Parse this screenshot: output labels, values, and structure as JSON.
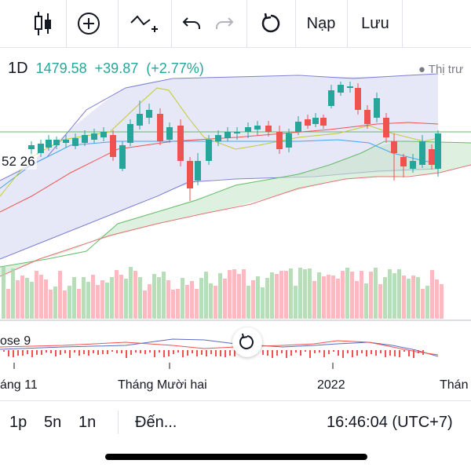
{
  "toolbar": {
    "load_label": "Nạp",
    "save_label": "Lưu"
  },
  "legend": {
    "interval": "1D",
    "price": "1479.58",
    "change": "+39.87",
    "change_pct": "(+2.77%)",
    "up_color": "#26a69a",
    "down_color": "#ef5350"
  },
  "indicator_label": "● Thị trư",
  "left_price_label": "52 26",
  "oscillator_label": "ose 9",
  "x_axis": [
    "áng 11",
    "Tháng Mười hai",
    "2022",
    "Thán"
  ],
  "bottom_bar": {
    "intervals": [
      "1p",
      "5n",
      "1n"
    ],
    "goto_label": "Đến...",
    "clock": "16:46:04 (UTC+7)"
  }
}
